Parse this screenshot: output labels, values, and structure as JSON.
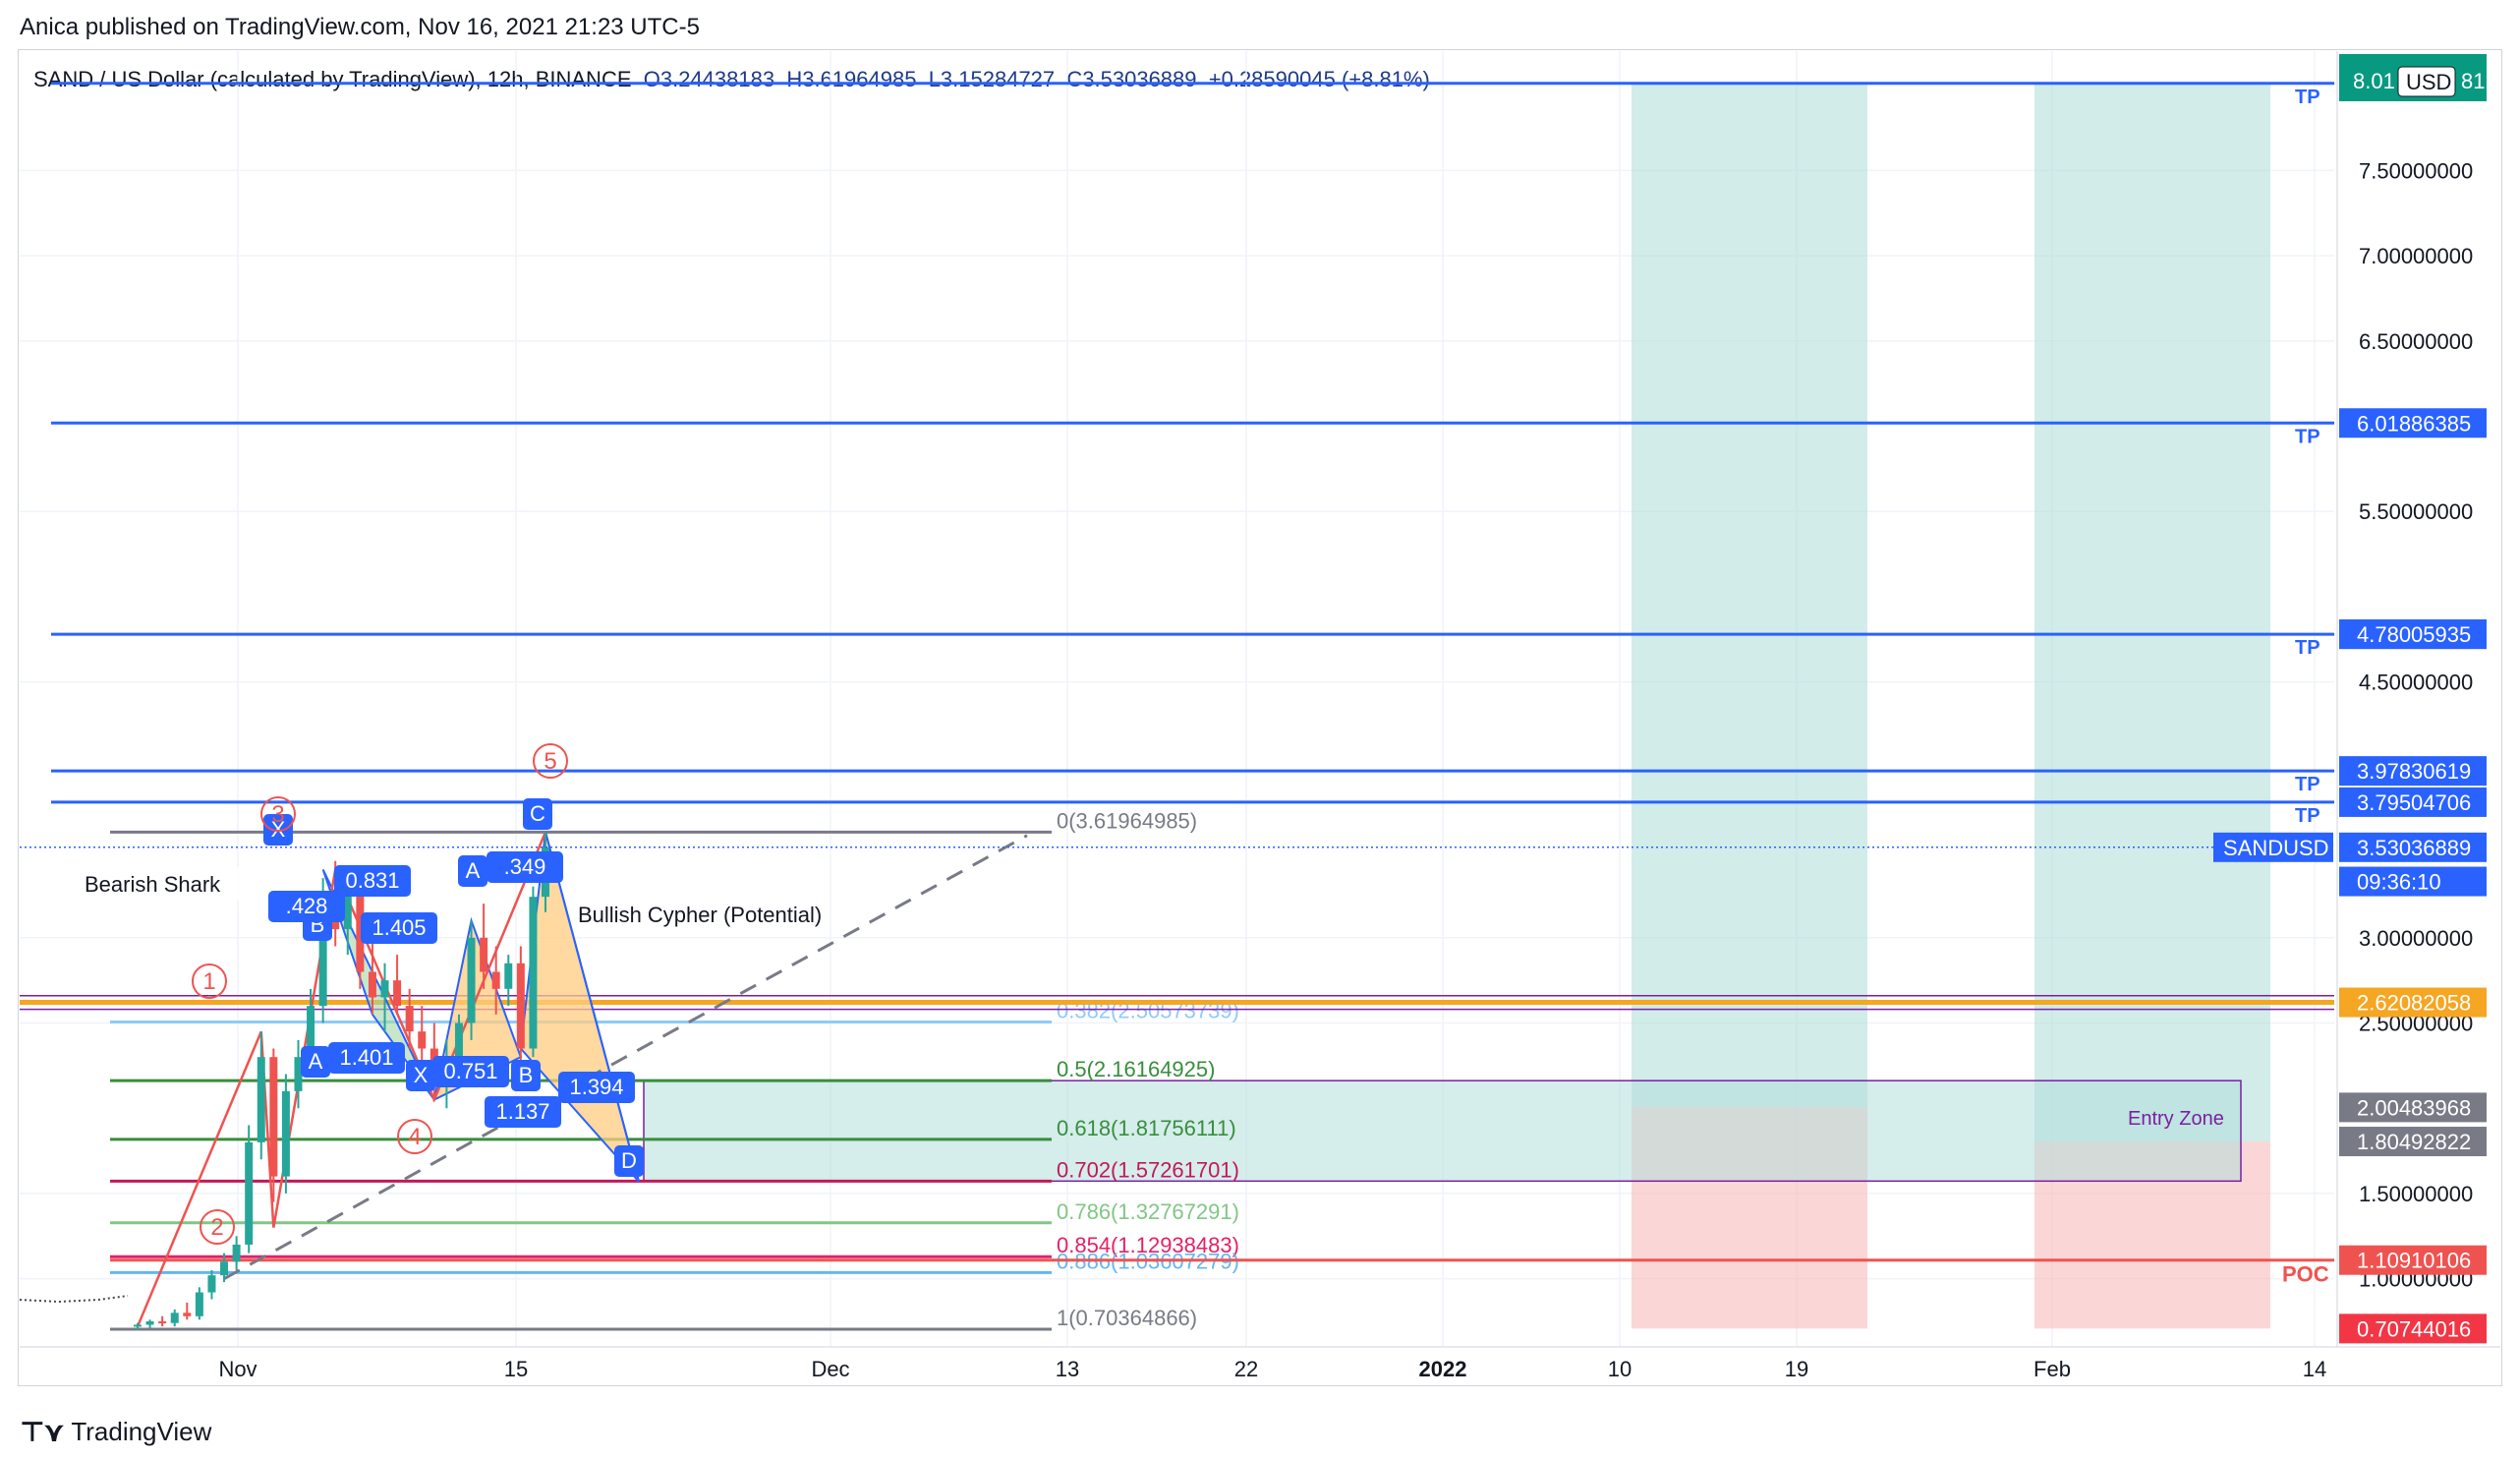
{
  "header": {
    "credit": "Anica published on TradingView.com, Nov 16, 2021 21:23 UTC-5"
  },
  "legend": {
    "symbol": "SAND / US Dollar (calculated by TradingView), 12h, BINANCE",
    "open": "O3.24438183",
    "high": "H3.61964985",
    "low": "L3.15284727",
    "close": "C3.53036889",
    "change": "+0.28590045 (+8.81%)"
  },
  "footer": {
    "brand": "TradingView"
  },
  "colors": {
    "up": "#26a69a",
    "down": "#ef5350",
    "tp_line": "#2962ff",
    "accent": "#2962ff",
    "poc": "#ef5350",
    "fib_gray": "#787b86",
    "fib_green": "#388e3c",
    "fib_magenta": "#c2185b"
  },
  "chart_data": {
    "type": "candlestick",
    "x_axis": {
      "ticks": [
        "Nov",
        "15",
        "Dec",
        "13",
        "22",
        "2022",
        "10",
        "19",
        "Feb",
        "14"
      ]
    },
    "y_axis": {
      "range": [
        0.6,
        8.2
      ],
      "ticks": [
        "7.50000000",
        "7.00000000",
        "6.50000000",
        "5.50000000",
        "4.50000000",
        "3.00000000",
        "2.50000000",
        "1.50000000",
        "1.00000000"
      ],
      "tick_values": [
        7.5,
        7.0,
        6.5,
        5.5,
        4.5,
        3.0,
        2.5,
        1.5,
        1.0
      ],
      "currency": "USD"
    },
    "price_labels": [
      {
        "text": "8.01083681",
        "value": 8.01083681,
        "color": "#2962ff"
      },
      {
        "text": "6.01886385",
        "value": 6.01886385,
        "color": "#2962ff"
      },
      {
        "text": "4.78005935",
        "value": 4.78005935,
        "color": "#2962ff"
      },
      {
        "text": "4.78005935",
        "value": 4.78005935,
        "color": "#2962ff"
      },
      {
        "text": "3.97830619",
        "value": 3.97830619,
        "color": "#2962ff"
      },
      {
        "text": "3.79504706",
        "value": 3.79504706,
        "color": "#2962ff"
      },
      {
        "text": "3.53036889",
        "value": 3.53036889,
        "color": "#2962ff"
      },
      {
        "text": "09:36:10",
        "value": 3.33,
        "color": "#2962ff"
      },
      {
        "text": "2.62082058",
        "value": 2.62082058,
        "color": "#f5a623"
      },
      {
        "text": "2.00483968",
        "value": 2.00483968,
        "color": "#787b86"
      },
      {
        "text": "1.80492822",
        "value": 1.80492822,
        "color": "#787b86"
      },
      {
        "text": "1.10910106",
        "value": 1.10910106,
        "color": "#ef5350"
      },
      {
        "text": "0.70744016",
        "value": 0.70744016,
        "color": "#f23645"
      }
    ],
    "top_partial_label": "8.01",
    "top_partial_label_end": "81",
    "symbol_tag": "SANDUSD",
    "tp_levels": [
      {
        "value": 8.01083681,
        "label": "TP"
      },
      {
        "value": 6.01886385,
        "label": "TP"
      },
      {
        "value": 4.78005935,
        "label": "TP"
      },
      {
        "value": 3.97830619,
        "label": "TP"
      },
      {
        "value": 3.79504706,
        "label": "TP"
      }
    ],
    "poc": {
      "value": 1.10910106,
      "label": "POC"
    },
    "fib_levels": [
      {
        "ratio": "0(3.61964985)",
        "value": 3.61964985,
        "color": "#787b86"
      },
      {
        "ratio": "0.382(2.50573739)",
        "value": 2.50573739,
        "color": "#90caf9"
      },
      {
        "ratio": "0.5(2.16164925)",
        "value": 2.16164925,
        "color": "#388e3c"
      },
      {
        "ratio": "0.618(1.81756111)",
        "value": 1.81756111,
        "color": "#388e3c"
      },
      {
        "ratio": "0.702(1.57261701)",
        "value": 1.57261701,
        "color": "#c2185b"
      },
      {
        "ratio": "0.786(1.32767291)",
        "value": 1.32767291,
        "color": "#81c784"
      },
      {
        "ratio": "0.854(1.12938483)",
        "value": 1.12938483,
        "color": "#e91e63"
      },
      {
        "ratio": "0.886(1.03607279)",
        "value": 1.03607279,
        "color": "#64b5f6"
      },
      {
        "ratio": "1(0.70364866)",
        "value": 0.70364866,
        "color": "#787b86"
      }
    ],
    "annotations": {
      "bearish_shark": "Bearish Shark",
      "bullish_cypher": "Bullish Cypher (Potential)",
      "entry_zone": "Entry Zone",
      "wave_labels": [
        "1",
        "2",
        "3",
        "4",
        "5"
      ],
      "pattern_points": [
        "X",
        "A",
        "B",
        "C",
        "D",
        "X",
        "A",
        "B"
      ],
      "ratios": [
        "0.831",
        "1.405",
        "1.401",
        "0.751",
        "1.137",
        "1.394",
        ".349",
        ".428"
      ]
    },
    "candles": [
      {
        "o": 0.72,
        "h": 0.74,
        "l": 0.7,
        "c": 0.73
      },
      {
        "o": 0.73,
        "h": 0.76,
        "l": 0.71,
        "c": 0.75
      },
      {
        "o": 0.75,
        "h": 0.78,
        "l": 0.72,
        "c": 0.74
      },
      {
        "o": 0.74,
        "h": 0.82,
        "l": 0.72,
        "c": 0.8
      },
      {
        "o": 0.8,
        "h": 0.86,
        "l": 0.76,
        "c": 0.78
      },
      {
        "o": 0.78,
        "h": 0.95,
        "l": 0.76,
        "c": 0.92
      },
      {
        "o": 0.92,
        "h": 1.05,
        "l": 0.88,
        "c": 1.02
      },
      {
        "o": 1.02,
        "h": 1.15,
        "l": 0.98,
        "c": 1.1
      },
      {
        "o": 1.1,
        "h": 1.25,
        "l": 1.05,
        "c": 1.2
      },
      {
        "o": 1.2,
        "h": 1.9,
        "l": 1.15,
        "c": 1.8
      },
      {
        "o": 1.8,
        "h": 2.45,
        "l": 1.7,
        "c": 2.3
      },
      {
        "o": 2.3,
        "h": 2.35,
        "l": 1.45,
        "c": 1.6
      },
      {
        "o": 1.6,
        "h": 2.2,
        "l": 1.5,
        "c": 2.1
      },
      {
        "o": 2.1,
        "h": 2.4,
        "l": 2.0,
        "c": 2.3
      },
      {
        "o": 2.3,
        "h": 2.7,
        "l": 2.2,
        "c": 2.6
      },
      {
        "o": 2.6,
        "h": 3.35,
        "l": 2.5,
        "c": 3.2
      },
      {
        "o": 3.2,
        "h": 3.45,
        "l": 2.95,
        "c": 3.05
      },
      {
        "o": 3.05,
        "h": 3.4,
        "l": 2.9,
        "c": 3.3
      },
      {
        "o": 3.3,
        "h": 3.32,
        "l": 2.7,
        "c": 2.8
      },
      {
        "o": 2.8,
        "h": 3.0,
        "l": 2.55,
        "c": 2.65
      },
      {
        "o": 2.65,
        "h": 2.85,
        "l": 2.45,
        "c": 2.75
      },
      {
        "o": 2.75,
        "h": 2.9,
        "l": 2.55,
        "c": 2.6
      },
      {
        "o": 2.6,
        "h": 2.7,
        "l": 2.35,
        "c": 2.45
      },
      {
        "o": 2.45,
        "h": 2.6,
        "l": 2.25,
        "c": 2.35
      },
      {
        "o": 2.35,
        "h": 2.5,
        "l": 2.05,
        "c": 2.15
      },
      {
        "o": 2.15,
        "h": 2.4,
        "l": 2.0,
        "c": 2.3
      },
      {
        "o": 2.3,
        "h": 2.55,
        "l": 2.2,
        "c": 2.5
      },
      {
        "o": 2.5,
        "h": 3.1,
        "l": 2.4,
        "c": 3.0
      },
      {
        "o": 3.0,
        "h": 3.2,
        "l": 2.7,
        "c": 2.8
      },
      {
        "o": 2.8,
        "h": 2.95,
        "l": 2.55,
        "c": 2.7
      },
      {
        "o": 2.7,
        "h": 2.9,
        "l": 2.6,
        "c": 2.85
      },
      {
        "o": 2.85,
        "h": 2.95,
        "l": 2.2,
        "c": 2.35
      },
      {
        "o": 2.35,
        "h": 3.3,
        "l": 2.3,
        "c": 3.24
      },
      {
        "o": 3.24,
        "h": 3.62,
        "l": 3.15,
        "c": 3.53
      }
    ]
  }
}
